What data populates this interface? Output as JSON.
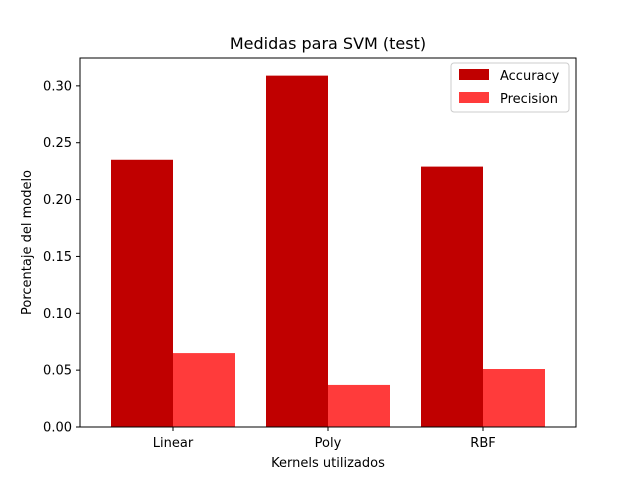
{
  "chart_data": {
    "type": "bar",
    "title": "Medidas para SVM (test)",
    "xlabel": "Kernels utilizados",
    "ylabel": "Porcentaje del modelo",
    "categories": [
      "Linear",
      "Poly",
      "RBF"
    ],
    "series": [
      {
        "name": "Accuracy",
        "values": [
          0.235,
          0.309,
          0.229
        ],
        "color": "#c00000"
      },
      {
        "name": "Precision",
        "values": [
          0.065,
          0.037,
          0.051
        ],
        "color": "#ff3b3b"
      }
    ],
    "ylim": [
      0,
      0.3245
    ],
    "yticks": [
      0.0,
      0.05,
      0.1,
      0.15,
      0.2,
      0.25,
      0.3
    ],
    "ytick_labels": [
      "0.00",
      "0.05",
      "0.10",
      "0.15",
      "0.20",
      "0.25",
      "0.30"
    ],
    "grid": false,
    "legend_position": "top-right"
  }
}
